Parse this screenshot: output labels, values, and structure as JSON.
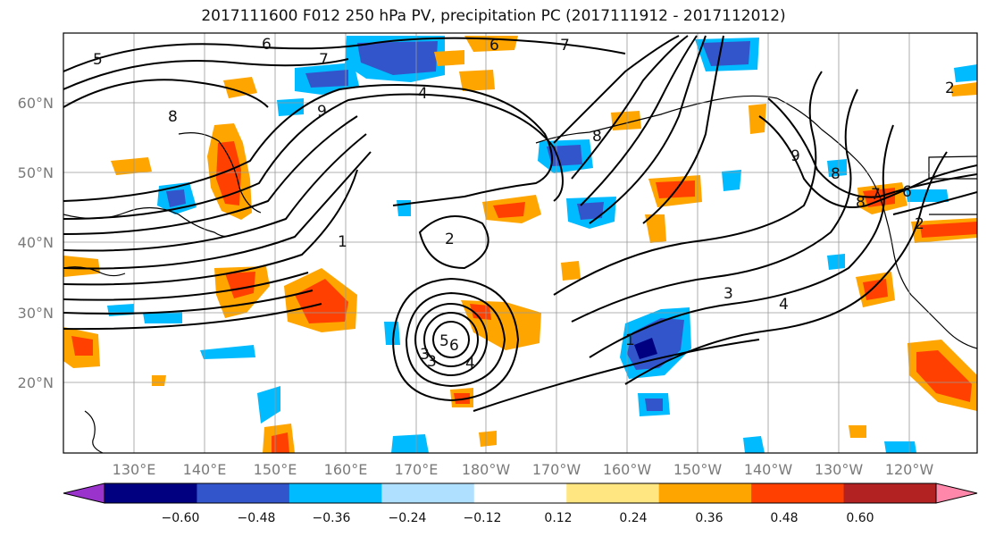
{
  "title": "2017111600 F012 250 hPa PV, precipitation PC (2017111912 - 2017112012)",
  "lat_ticks": [
    "20°N",
    "30°N",
    "40°N",
    "50°N",
    "60°N"
  ],
  "lon_ticks": [
    "130°E",
    "140°E",
    "150°E",
    "160°E",
    "170°E",
    "180°W",
    "170°W",
    "160°W",
    "150°W",
    "140°W",
    "130°W",
    "120°W"
  ],
  "colorbar": {
    "ticks": [
      "−0.60",
      "−0.48",
      "−0.36",
      "−0.24",
      "−0.12",
      "0.12",
      "0.24",
      "0.36",
      "0.48",
      "0.60"
    ],
    "colors": [
      "#9933cc",
      "#000080",
      "#3355cc",
      "#00bbff",
      "#b0e0ff",
      "#ffffff",
      "#ffe680",
      "#ffa500",
      "#ff4000",
      "#b22222",
      "#ff88aa"
    ]
  },
  "contour_labels": [
    "5",
    "6",
    "7",
    "6",
    "7",
    "4",
    "8",
    "9",
    "8",
    "1",
    "2",
    "3",
    "6",
    "5",
    "4",
    "3",
    "2",
    "1",
    "3",
    "4",
    "9",
    "8",
    "7",
    "6",
    "2",
    "8"
  ]
}
